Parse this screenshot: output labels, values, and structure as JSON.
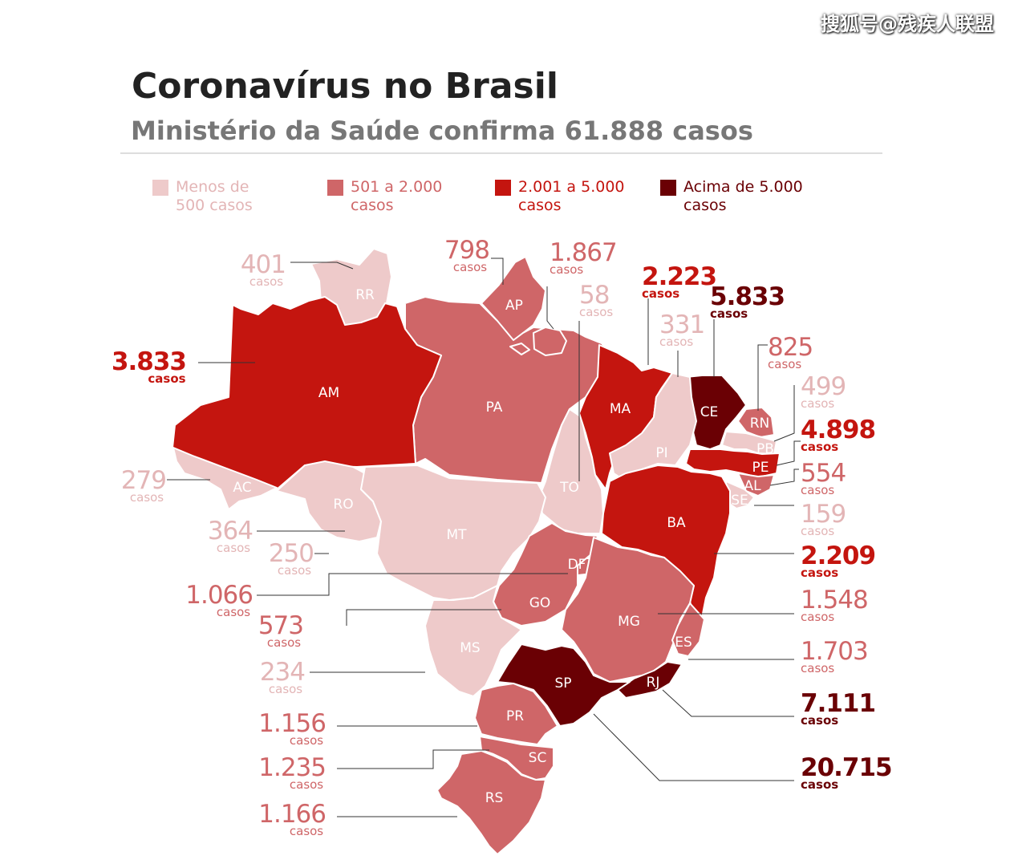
{
  "watermark": "搜狐号@残疾人联盟",
  "title": "Coronavírus no Brasil",
  "subtitle": "Ministério da Saúde confirma 61.888 casos",
  "colors": {
    "c1": "#eecaca",
    "c2": "#cf6668",
    "c3": "#c4150f",
    "c4": "#6a0004",
    "text1": "#e3b5b6",
    "text2": "#cf6668",
    "text3": "#c4150f",
    "text4": "#6a0004"
  },
  "legend": [
    {
      "label": "Menos de\n500 casos",
      "cat": "c1"
    },
    {
      "label": "501 a 2.000\ncasos",
      "cat": "c2"
    },
    {
      "label": "2.001 a 5.000\ncasos",
      "cat": "c3"
    },
    {
      "label": "Acima de 5.000\ncasos",
      "cat": "c4"
    }
  ],
  "unit": "casos",
  "states": [
    {
      "abbr": "RR",
      "cases": "401",
      "cat": "c1"
    },
    {
      "abbr": "AP",
      "cases": "798",
      "cat": "c2"
    },
    {
      "abbr": "PA",
      "cases": "1.867",
      "cat": "c2"
    },
    {
      "abbr": "TO",
      "cases": "58",
      "cat": "c1"
    },
    {
      "abbr": "MA",
      "cases": "2.223",
      "cat": "c3"
    },
    {
      "abbr": "CE",
      "cases": "5.833",
      "cat": "c4"
    },
    {
      "abbr": "PI",
      "cases": "331",
      "cat": "c1"
    },
    {
      "abbr": "RN",
      "cases": "825",
      "cat": "c2"
    },
    {
      "abbr": "PB",
      "cases": "499",
      "cat": "c1"
    },
    {
      "abbr": "PE",
      "cases": "4.898",
      "cat": "c3"
    },
    {
      "abbr": "AL",
      "cases": "554",
      "cat": "c2"
    },
    {
      "abbr": "SE",
      "cases": "159",
      "cat": "c1"
    },
    {
      "abbr": "AM",
      "cases": "3.833",
      "cat": "c3"
    },
    {
      "abbr": "AC",
      "cases": "279",
      "cat": "c1"
    },
    {
      "abbr": "RO",
      "cases": "364",
      "cat": "c1"
    },
    {
      "abbr": "MT",
      "cases": "250",
      "cat": "c1"
    },
    {
      "abbr": "DF",
      "cases": "1.066",
      "cat": "c2"
    },
    {
      "abbr": "GO",
      "cases": "573",
      "cat": "c2"
    },
    {
      "abbr": "MS",
      "cases": "234",
      "cat": "c1"
    },
    {
      "abbr": "BA",
      "cases": "2.209",
      "cat": "c3"
    },
    {
      "abbr": "MG",
      "cases": "1.548",
      "cat": "c2"
    },
    {
      "abbr": "ES",
      "cases": "1.703",
      "cat": "c2"
    },
    {
      "abbr": "RJ",
      "cases": "7.111",
      "cat": "c4"
    },
    {
      "abbr": "SP",
      "cases": "20.715",
      "cat": "c4"
    },
    {
      "abbr": "PR",
      "cases": "1.156",
      "cat": "c2"
    },
    {
      "abbr": "SC",
      "cases": "1.235",
      "cat": "c2"
    },
    {
      "abbr": "RS",
      "cases": "1.166",
      "cat": "c2"
    }
  ]
}
